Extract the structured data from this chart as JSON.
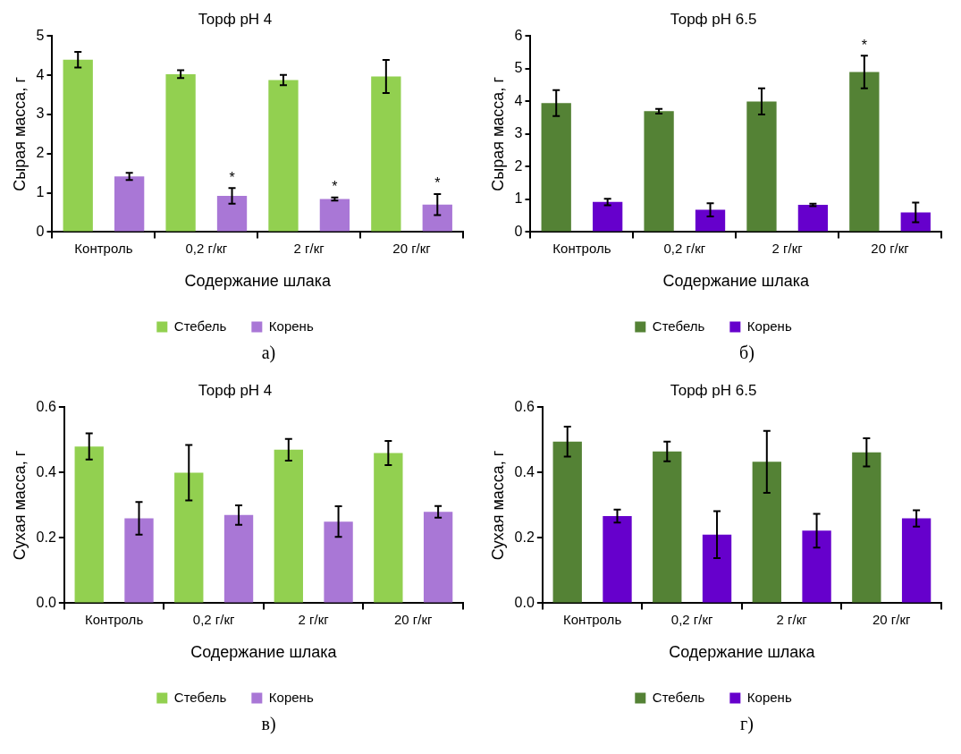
{
  "chart_data": [
    {
      "type": "bar",
      "title": "Торф pH 4",
      "xlabel": "Содержание шлака",
      "ylabel": "Сырая масса, г",
      "categories": [
        "Контроль",
        "0,2 г/кг",
        "2 г/кг",
        "20 г/кг"
      ],
      "series": [
        {
          "name": "Стебель",
          "color": "#92d050",
          "values": [
            4.4,
            4.03,
            3.88,
            3.97
          ],
          "errors": [
            0.2,
            0.1,
            0.13,
            0.42
          ]
        },
        {
          "name": "Корень",
          "color": "#a977d6",
          "values": [
            1.42,
            0.92,
            0.84,
            0.7
          ],
          "errors": [
            0.09,
            0.2,
            0.04,
            0.27
          ],
          "value_labels": [
            null,
            "*",
            "*",
            "*"
          ]
        }
      ],
      "ylim": [
        0,
        5
      ],
      "yticks": [
        0,
        1,
        2,
        3,
        4,
        5
      ],
      "legend": "bottom",
      "annotations": [
        "а)"
      ]
    },
    {
      "type": "bar",
      "title": "Торф pH 6.5",
      "xlabel": "Содержание шлака",
      "ylabel": "Сырая масса, г",
      "categories": [
        "Контроль",
        "0,2 г/кг",
        "2 г/кг",
        "20 г/кг"
      ],
      "series": [
        {
          "name": "Стебель",
          "color": "#548235",
          "values": [
            3.95,
            3.7,
            4.0,
            4.9
          ],
          "errors": [
            0.4,
            0.07,
            0.4,
            0.5
          ],
          "value_labels": [
            null,
            null,
            null,
            "*"
          ]
        },
        {
          "name": "Корень",
          "color": "#6600cc",
          "values": [
            0.92,
            0.68,
            0.83,
            0.6
          ],
          "errors": [
            0.1,
            0.2,
            0.04,
            0.3
          ]
        }
      ],
      "ylim": [
        0,
        6
      ],
      "yticks": [
        0,
        1,
        2,
        3,
        4,
        5,
        6
      ],
      "legend": "bottom",
      "annotations": [
        "б)"
      ]
    },
    {
      "type": "bar",
      "title": "Торф pH 4",
      "xlabel": "Содержание шлака",
      "ylabel": "Сухая масса, г",
      "categories": [
        "Контроль",
        "0,2 г/кг",
        "2 г/кг",
        "20 г/кг"
      ],
      "series": [
        {
          "name": "Стебель",
          "color": "#92d050",
          "values": [
            0.48,
            0.4,
            0.47,
            0.46
          ],
          "errors": [
            0.04,
            0.085,
            0.033,
            0.037
          ]
        },
        {
          "name": "Корень",
          "color": "#a977d6",
          "values": [
            0.26,
            0.27,
            0.25,
            0.28
          ],
          "errors": [
            0.05,
            0.03,
            0.047,
            0.018
          ]
        }
      ],
      "ylim": [
        0,
        0.6
      ],
      "yticks": [
        {
          "value": 0,
          "label": "0.0"
        },
        0.2,
        0.4,
        0.6
      ],
      "legend": "bottom",
      "annotations": [
        "в)"
      ]
    },
    {
      "type": "bar",
      "title": "Торф pH 6.5",
      "xlabel": "Содержание шлака",
      "ylabel": "Сухая масса, г",
      "categories": [
        "Контроль",
        "0,2 г/кг",
        "2 г/кг",
        "20 г/кг"
      ],
      "series": [
        {
          "name": "Стебель",
          "color": "#548235",
          "values": [
            0.495,
            0.465,
            0.433,
            0.462
          ],
          "errors": [
            0.046,
            0.03,
            0.095,
            0.043
          ]
        },
        {
          "name": "Корень",
          "color": "#6600cc",
          "values": [
            0.267,
            0.21,
            0.222,
            0.26
          ],
          "errors": [
            0.02,
            0.072,
            0.052,
            0.025
          ]
        }
      ],
      "ylim": [
        0,
        0.6
      ],
      "yticks": [
        {
          "value": 0,
          "label": "0.0"
        },
        0.2,
        0.4,
        0.6
      ],
      "legend": "bottom",
      "annotations": [
        "г)"
      ]
    }
  ]
}
